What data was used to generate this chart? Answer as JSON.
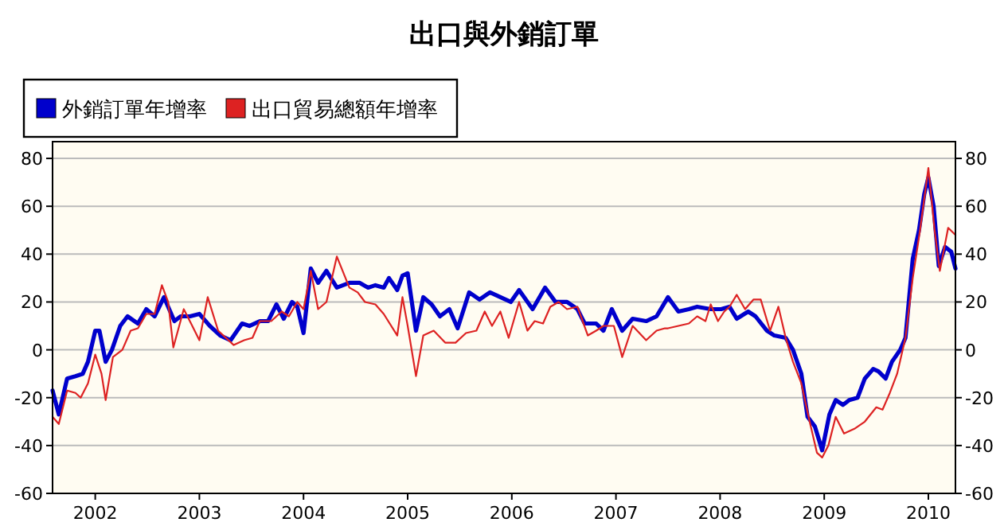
{
  "chart_data": {
    "type": "line",
    "title": "出口與外銷訂單",
    "legend": "top left",
    "grid": "y",
    "xlim": [
      2001.59,
      2010.26
    ],
    "xticks": [
      2002,
      2003,
      2004,
      2005,
      2006,
      2007,
      2008,
      2009,
      2010
    ],
    "ylim": [
      -60,
      87
    ],
    "yticks": [
      -60,
      -40,
      -20,
      0,
      20,
      40,
      60,
      80
    ],
    "y2lim": [
      -60,
      87
    ],
    "y2ticks": [
      -60,
      -40,
      -20,
      0,
      20,
      40,
      60,
      80
    ],
    "series": [
      {
        "name": "外銷訂單年增率",
        "color": "#0000cc",
        "x": [
          2001.59,
          2001.65,
          2001.73,
          2001.81,
          2001.88,
          2001.93,
          2002.0,
          2002.04,
          2002.1,
          2002.16,
          2002.24,
          2002.31,
          2002.41,
          2002.49,
          2002.57,
          2002.66,
          2002.76,
          2002.82,
          2002.91,
          2003.0,
          2003.1,
          2003.2,
          2003.3,
          2003.41,
          2003.48,
          2003.58,
          2003.66,
          2003.74,
          2003.81,
          2003.89,
          2003.94,
          2004.0,
          2004.07,
          2004.14,
          2004.22,
          2004.32,
          2004.44,
          2004.54,
          2004.62,
          2004.69,
          2004.77,
          2004.82,
          2004.9,
          2004.95,
          2005.0,
          2005.08,
          2005.15,
          2005.23,
          2005.31,
          2005.4,
          2005.48,
          2005.59,
          2005.69,
          2005.79,
          2005.89,
          2005.99,
          2006.07,
          2006.2,
          2006.32,
          2006.42,
          2006.53,
          2006.63,
          2006.7,
          2006.81,
          2006.88,
          2006.96,
          2007.06,
          2007.16,
          2007.29,
          2007.39,
          2007.5,
          2007.6,
          2007.7,
          2007.78,
          2007.91,
          2008.01,
          2008.09,
          2008.16,
          2008.27,
          2008.34,
          2008.45,
          2008.52,
          2008.63,
          2008.7,
          2008.78,
          2008.84,
          2008.91,
          2008.98,
          2009.05,
          2009.11,
          2009.18,
          2009.24,
          2009.32,
          2009.39,
          2009.47,
          2009.52,
          2009.59,
          2009.65,
          2009.73,
          2009.78,
          2009.85,
          2009.91,
          2009.96,
          2010.0,
          2010.05,
          2010.1,
          2010.16,
          2010.22,
          2010.26
        ],
        "values": [
          -17,
          -27,
          -12,
          -11,
          -10,
          -5,
          8,
          8,
          -5,
          0,
          10,
          14,
          11,
          17,
          14,
          22,
          12,
          14,
          14,
          15,
          10,
          6,
          4,
          11,
          10,
          12,
          12,
          19,
          13,
          20,
          18,
          7,
          34,
          28,
          33,
          26,
          28,
          28,
          26,
          27,
          26,
          30,
          25,
          31,
          32,
          8,
          22,
          19,
          14,
          17,
          9,
          24,
          21,
          24,
          22,
          20,
          25,
          17,
          26,
          20,
          20,
          17,
          11,
          11,
          8,
          17,
          8,
          13,
          12,
          14,
          22,
          16,
          17,
          18,
          17,
          17,
          18,
          13,
          16,
          14,
          8,
          6,
          5,
          0,
          -10,
          -28,
          -32,
          -42,
          -27,
          -21,
          -23,
          -21,
          -20,
          -12,
          -8,
          -9,
          -12,
          -5,
          0,
          5,
          38,
          50,
          65,
          72,
          60,
          35,
          43,
          41,
          34
        ]
      },
      {
        "name": "出口貿易總額年增率",
        "color": "#dd2222",
        "x": [
          2001.59,
          2001.65,
          2001.73,
          2001.81,
          2001.86,
          2001.93,
          2002.0,
          2002.06,
          2002.1,
          2002.17,
          2002.26,
          2002.34,
          2002.41,
          2002.49,
          2002.57,
          2002.64,
          2002.7,
          2002.75,
          2002.85,
          2002.92,
          2003.0,
          2003.08,
          2003.18,
          2003.33,
          2003.43,
          2003.51,
          2003.58,
          2003.69,
          2003.79,
          2003.86,
          2003.94,
          2004.0,
          2004.07,
          2004.14,
          2004.22,
          2004.32,
          2004.44,
          2004.52,
          2004.59,
          2004.69,
          2004.77,
          2004.9,
          2004.95,
          2005.0,
          2005.08,
          2005.15,
          2005.25,
          2005.36,
          2005.46,
          2005.56,
          2005.66,
          2005.74,
          2005.81,
          2005.89,
          2005.97,
          2006.07,
          2006.15,
          2006.22,
          2006.3,
          2006.37,
          2006.45,
          2006.53,
          2006.63,
          2006.73,
          2006.81,
          2006.88,
          2006.98,
          2007.06,
          2007.16,
          2007.29,
          2007.39,
          2007.47,
          2007.5,
          2007.6,
          2007.7,
          2007.78,
          2007.86,
          2007.91,
          2007.98,
          2008.04,
          2008.09,
          2008.16,
          2008.24,
          2008.32,
          2008.39,
          2008.48,
          2008.56,
          2008.63,
          2008.7,
          2008.78,
          2008.86,
          2008.93,
          2008.98,
          2009.04,
          2009.11,
          2009.19,
          2009.29,
          2009.39,
          2009.5,
          2009.56,
          2009.63,
          2009.7,
          2009.78,
          2009.85,
          2009.92,
          2010.0,
          2010.06,
          2010.11,
          2010.19,
          2010.26
        ],
        "values": [
          -28,
          -31,
          -17,
          -18,
          -20,
          -14,
          -2,
          -10,
          -21,
          -3,
          0,
          8,
          9,
          15,
          15,
          27,
          20,
          1,
          17,
          11,
          4,
          22,
          8,
          2,
          4,
          5,
          12,
          12,
          16,
          14,
          20,
          17,
          33,
          17,
          20,
          39,
          26,
          24,
          20,
          19,
          15,
          6,
          22,
          10,
          -11,
          6,
          8,
          3,
          3,
          7,
          8,
          16,
          10,
          16,
          5,
          20,
          8,
          12,
          11,
          18,
          20,
          17,
          18,
          6,
          8,
          10,
          10,
          -3,
          10,
          4,
          8,
          9,
          9,
          10,
          11,
          14,
          12,
          19,
          12,
          16,
          18,
          23,
          17,
          21,
          21,
          8,
          18,
          5,
          -5,
          -14,
          -30,
          -43,
          -45,
          -40,
          -28,
          -35,
          -33,
          -30,
          -24,
          -25,
          -18,
          -10,
          5,
          30,
          50,
          76,
          50,
          33,
          51,
          48
        ]
      }
    ]
  }
}
